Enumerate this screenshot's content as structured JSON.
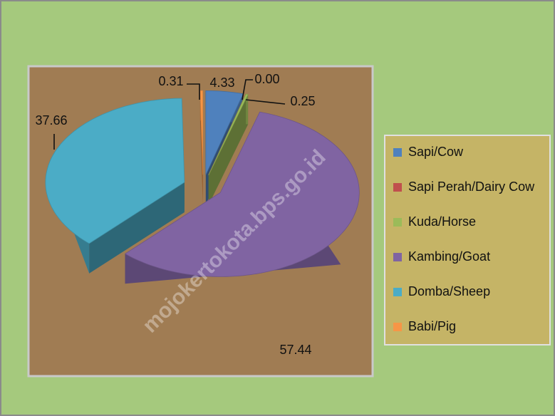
{
  "chart_data": {
    "type": "pie",
    "categories": [
      "Sapi/Cow",
      "Sapi Perah/Dairy Cow",
      "Kuda/Horse",
      "Kambing/Goat",
      "Domba/Sheep",
      "Babi/Pig"
    ],
    "values": [
      4.33,
      0,
      0.25,
      57.44,
      37.66,
      0.31
    ],
    "value_labels": [
      "4.33",
      "0.00",
      "0.25",
      "57.44",
      "37.66",
      "0.31"
    ],
    "colors": [
      "#4f81bd",
      "#c0504d",
      "#9bbb59",
      "#8064a2",
      "#4bacc6",
      "#f79646"
    ],
    "legend": "right"
  },
  "watermark": "mojokertokota.bps.go.id"
}
